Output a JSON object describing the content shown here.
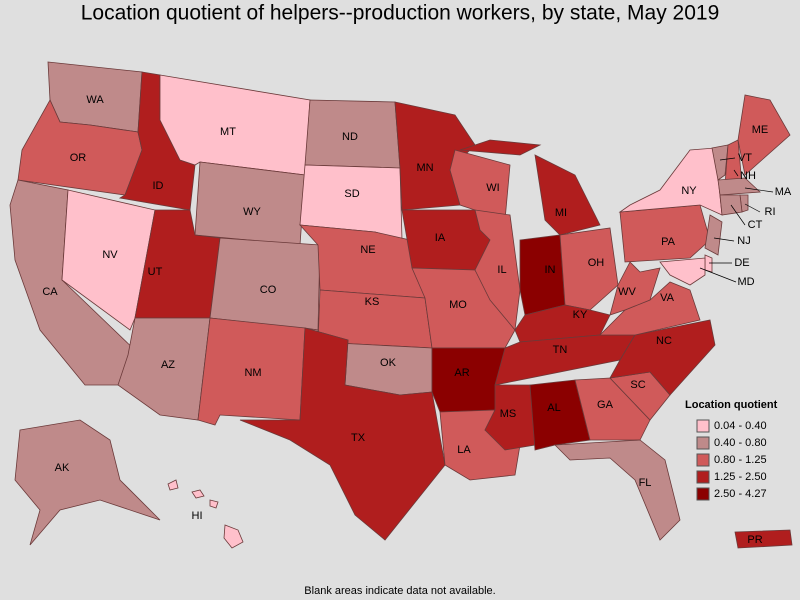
{
  "title": "Location quotient of helpers--production workers, by state, May 2019",
  "states": [
    {
      "abbr": "WA",
      "class": 1
    },
    {
      "abbr": "OR",
      "class": 2
    },
    {
      "abbr": "CA",
      "class": 1
    },
    {
      "abbr": "NV",
      "class": 0
    },
    {
      "abbr": "ID",
      "class": 3
    },
    {
      "abbr": "MT",
      "class": 0
    },
    {
      "abbr": "WY",
      "class": 1
    },
    {
      "abbr": "UT",
      "class": 3
    },
    {
      "abbr": "AZ",
      "class": 1
    },
    {
      "abbr": "CO",
      "class": 1
    },
    {
      "abbr": "NM",
      "class": 2
    },
    {
      "abbr": "ND",
      "class": 1
    },
    {
      "abbr": "SD",
      "class": 0
    },
    {
      "abbr": "NE",
      "class": 2
    },
    {
      "abbr": "KS",
      "class": 2
    },
    {
      "abbr": "OK",
      "class": 1
    },
    {
      "abbr": "TX",
      "class": 3
    },
    {
      "abbr": "MN",
      "class": 3
    },
    {
      "abbr": "IA",
      "class": 3
    },
    {
      "abbr": "MO",
      "class": 2
    },
    {
      "abbr": "AR",
      "class": 4
    },
    {
      "abbr": "LA",
      "class": 2
    },
    {
      "abbr": "WI",
      "class": 2
    },
    {
      "abbr": "IL",
      "class": 2
    },
    {
      "abbr": "MI",
      "class": 3
    },
    {
      "abbr": "IN",
      "class": 4
    },
    {
      "abbr": "OH",
      "class": 2
    },
    {
      "abbr": "KY",
      "class": 3
    },
    {
      "abbr": "TN",
      "class": 3
    },
    {
      "abbr": "MS",
      "class": 3
    },
    {
      "abbr": "AL",
      "class": 4
    },
    {
      "abbr": "GA",
      "class": 2
    },
    {
      "abbr": "FL",
      "class": 1
    },
    {
      "abbr": "SC",
      "class": 2
    },
    {
      "abbr": "NC",
      "class": 3
    },
    {
      "abbr": "VA",
      "class": 2
    },
    {
      "abbr": "WV",
      "class": 2
    },
    {
      "abbr": "PA",
      "class": 2
    },
    {
      "abbr": "NY",
      "class": 0
    },
    {
      "abbr": "ME",
      "class": 2
    },
    {
      "abbr": "VT",
      "class": 1
    },
    {
      "abbr": "NH",
      "class": 2
    },
    {
      "abbr": "MA",
      "class": 1
    },
    {
      "abbr": "RI",
      "class": 1
    },
    {
      "abbr": "CT",
      "class": 1
    },
    {
      "abbr": "NJ",
      "class": 1
    },
    {
      "abbr": "DE",
      "class": 0
    },
    {
      "abbr": "MD",
      "class": 0
    },
    {
      "abbr": "AK",
      "class": 1
    },
    {
      "abbr": "HI",
      "class": 0
    },
    {
      "abbr": "PR",
      "class": 3
    }
  ],
  "legend": {
    "title": "Location quotient",
    "bins": [
      {
        "label": "0.04 - 0.40",
        "color": "#ffc0cb"
      },
      {
        "label": "0.40 - 0.80",
        "color": "#bf8a8a"
      },
      {
        "label": "0.80 - 1.25",
        "color": "#d05a5a"
      },
      {
        "label": "1.25 - 2.50",
        "color": "#b01e1e"
      },
      {
        "label": "2.50 - 4.27",
        "color": "#8b0000"
      }
    ]
  },
  "note": "Blank areas indicate data not available."
}
